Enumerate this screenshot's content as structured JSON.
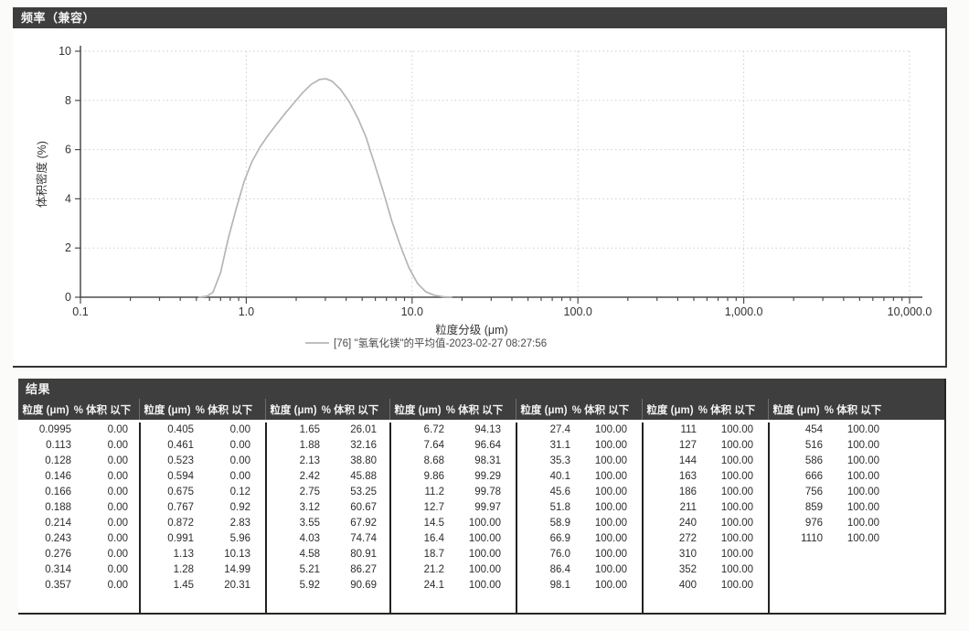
{
  "frequency_panel": {
    "title": "频率（兼容）"
  },
  "chart_data": {
    "type": "line",
    "title": "频率（兼容）",
    "xlabel": "粒度分级 (μm)",
    "ylabel": "体积密度 (%)",
    "x_scale": "log",
    "xlim": [
      0.1,
      10000
    ],
    "ylim": [
      0,
      10
    ],
    "grid": true,
    "x_ticks": [
      {
        "v": 0.1,
        "label": "0.1"
      },
      {
        "v": 1,
        "label": "1.0"
      },
      {
        "v": 10,
        "label": "10.0"
      },
      {
        "v": 100,
        "label": "100.0"
      },
      {
        "v": 1000,
        "label": "1,000.0"
      },
      {
        "v": 10000,
        "label": "10,000.0"
      }
    ],
    "y_ticks": [
      0,
      2,
      4,
      6,
      8,
      10
    ],
    "legend": {
      "position": "bottom",
      "label": "[76] \"氢氧化镁\"的平均值-2023-02-27 08:27:56"
    },
    "series": [
      {
        "name": "[76] \"氢氧化镁\"的平均值-2023-02-27 08:27:56",
        "color": "#b2b6b8",
        "x": [
          0.52,
          0.58,
          0.63,
          0.7,
          0.78,
          0.87,
          0.97,
          1.08,
          1.21,
          1.36,
          1.53,
          1.72,
          1.94,
          2.18,
          2.46,
          2.77,
          3.02,
          3.29,
          3.7,
          4.17,
          4.69,
          5.28,
          5.95,
          6.7,
          7.54,
          8.49,
          9.56,
          10.8,
          12.1,
          13.6,
          15.4,
          17.3
        ],
        "y": [
          0.0,
          0.04,
          0.2,
          1.0,
          2.4,
          3.6,
          4.7,
          5.5,
          6.1,
          6.6,
          7.05,
          7.48,
          7.9,
          8.3,
          8.65,
          8.85,
          8.88,
          8.78,
          8.45,
          7.95,
          7.3,
          6.5,
          5.4,
          4.3,
          3.1,
          2.1,
          1.2,
          0.55,
          0.22,
          0.08,
          0.02,
          0.0
        ]
      }
    ]
  },
  "results_panel": {
    "title": "结果",
    "col_headers": [
      "粒度 (μm)",
      "% 体积 以下"
    ],
    "groups": [
      {
        "rows": [
          [
            "0.0995",
            "0.00"
          ],
          [
            "0.113",
            "0.00"
          ],
          [
            "0.128",
            "0.00"
          ],
          [
            "0.146",
            "0.00"
          ],
          [
            "0.166",
            "0.00"
          ],
          [
            "0.188",
            "0.00"
          ],
          [
            "0.214",
            "0.00"
          ],
          [
            "0.243",
            "0.00"
          ],
          [
            "0.276",
            "0.00"
          ],
          [
            "0.314",
            "0.00"
          ],
          [
            "0.357",
            "0.00"
          ]
        ]
      },
      {
        "rows": [
          [
            "0.405",
            "0.00"
          ],
          [
            "0.461",
            "0.00"
          ],
          [
            "0.523",
            "0.00"
          ],
          [
            "0.594",
            "0.00"
          ],
          [
            "0.675",
            "0.12"
          ],
          [
            "0.767",
            "0.92"
          ],
          [
            "0.872",
            "2.83"
          ],
          [
            "0.991",
            "5.96"
          ],
          [
            "1.13",
            "10.13"
          ],
          [
            "1.28",
            "14.99"
          ],
          [
            "1.45",
            "20.31"
          ]
        ]
      },
      {
        "rows": [
          [
            "1.65",
            "26.01"
          ],
          [
            "1.88",
            "32.16"
          ],
          [
            "2.13",
            "38.80"
          ],
          [
            "2.42",
            "45.88"
          ],
          [
            "2.75",
            "53.25"
          ],
          [
            "3.12",
            "60.67"
          ],
          [
            "3.55",
            "67.92"
          ],
          [
            "4.03",
            "74.74"
          ],
          [
            "4.58",
            "80.91"
          ],
          [
            "5.21",
            "86.27"
          ],
          [
            "5.92",
            "90.69"
          ]
        ]
      },
      {
        "rows": [
          [
            "6.72",
            "94.13"
          ],
          [
            "7.64",
            "96.64"
          ],
          [
            "8.68",
            "98.31"
          ],
          [
            "9.86",
            "99.29"
          ],
          [
            "11.2",
            "99.78"
          ],
          [
            "12.7",
            "99.97"
          ],
          [
            "14.5",
            "100.00"
          ],
          [
            "16.4",
            "100.00"
          ],
          [
            "18.7",
            "100.00"
          ],
          [
            "21.2",
            "100.00"
          ],
          [
            "24.1",
            "100.00"
          ]
        ]
      },
      {
        "rows": [
          [
            "27.4",
            "100.00"
          ],
          [
            "31.1",
            "100.00"
          ],
          [
            "35.3",
            "100.00"
          ],
          [
            "40.1",
            "100.00"
          ],
          [
            "45.6",
            "100.00"
          ],
          [
            "51.8",
            "100.00"
          ],
          [
            "58.9",
            "100.00"
          ],
          [
            "66.9",
            "100.00"
          ],
          [
            "76.0",
            "100.00"
          ],
          [
            "86.4",
            "100.00"
          ],
          [
            "98.1",
            "100.00"
          ]
        ]
      },
      {
        "rows": [
          [
            "111",
            "100.00"
          ],
          [
            "127",
            "100.00"
          ],
          [
            "144",
            "100.00"
          ],
          [
            "163",
            "100.00"
          ],
          [
            "186",
            "100.00"
          ],
          [
            "211",
            "100.00"
          ],
          [
            "240",
            "100.00"
          ],
          [
            "272",
            "100.00"
          ],
          [
            "310",
            "100.00"
          ],
          [
            "352",
            "100.00"
          ],
          [
            "400",
            "100.00"
          ]
        ]
      },
      {
        "rows": [
          [
            "454",
            "100.00"
          ],
          [
            "516",
            "100.00"
          ],
          [
            "586",
            "100.00"
          ],
          [
            "666",
            "100.00"
          ],
          [
            "756",
            "100.00"
          ],
          [
            "859",
            "100.00"
          ],
          [
            "976",
            "100.00"
          ],
          [
            "1110",
            "100.00"
          ]
        ]
      }
    ]
  },
  "colors": {
    "panel_header_bg": "#3e3e3e",
    "panel_header_text": "#f3f3f3",
    "curve": "#b2b6b8",
    "table_divider": "#222222"
  }
}
